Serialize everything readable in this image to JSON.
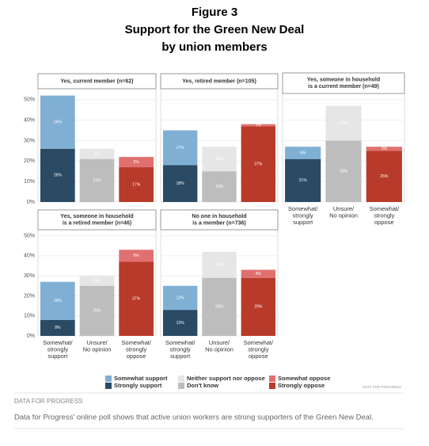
{
  "header": {
    "title": [
      "Figure 3",
      "Support for the Green New Deal",
      "by union members"
    ]
  },
  "chart_data": [
    {
      "type": "stacked-bar",
      "title": [
        "Yes, current member (n=62)"
      ],
      "categories": [
        null,
        null,
        null
      ],
      "ylim": [
        0,
        53
      ],
      "yticks": [
        {
          "value": 0,
          "label": "0%"
        },
        {
          "value": 10,
          "label": "10%"
        },
        {
          "value": 20,
          "label": "20%"
        },
        {
          "value": 30,
          "label": "30%"
        },
        {
          "value": 40,
          "label": "40%"
        },
        {
          "value": 50,
          "label": "50%"
        }
      ],
      "grid": true,
      "series": [
        {
          "name": "Strongly support",
          "color": "#2b4a63",
          "values": [
            26,
            null,
            null
          ],
          "value_labels": [
            "26%",
            null,
            null
          ]
        },
        {
          "name": "Somewhat support",
          "color": "#7fb0d4",
          "values": [
            26,
            null,
            null
          ],
          "value_labels": [
            "26%",
            null,
            null
          ]
        },
        {
          "name": "Don't know",
          "color": "#bdbdbd",
          "values": [
            null,
            21,
            null
          ],
          "value_labels": [
            null,
            "21%",
            null
          ]
        },
        {
          "name": "Neither support nor oppose",
          "color": "#e6e6e6",
          "values": [
            null,
            5,
            null
          ],
          "value_labels": [
            null,
            "5%",
            null
          ]
        },
        {
          "name": "Strongly oppose",
          "color": "#b83a2a",
          "values": [
            null,
            null,
            17
          ],
          "value_labels": [
            null,
            null,
            "17%"
          ]
        },
        {
          "name": "Somewhat oppose",
          "color": "#e07070",
          "values": [
            null,
            null,
            5
          ],
          "value_labels": [
            null,
            null,
            "5%"
          ]
        }
      ]
    },
    {
      "type": "stacked-bar",
      "title": [
        "Yes, retired member (n=105)"
      ],
      "categories": [
        null,
        null,
        null
      ],
      "ylim": [
        0,
        53
      ],
      "yticks": [
        {
          "value": 0,
          "label": "0%"
        },
        {
          "value": 10,
          "label": "10%"
        },
        {
          "value": 20,
          "label": "20%"
        },
        {
          "value": 30,
          "label": "30%"
        },
        {
          "value": 40,
          "label": "40%"
        },
        {
          "value": 50,
          "label": "50%"
        }
      ],
      "grid": true,
      "series": [
        {
          "name": "Strongly support",
          "color": "#2b4a63",
          "values": [
            18,
            null,
            null
          ],
          "value_labels": [
            "18%",
            null,
            null
          ]
        },
        {
          "name": "Somewhat support",
          "color": "#7fb0d4",
          "values": [
            17,
            null,
            null
          ],
          "value_labels": [
            "17%",
            null,
            null
          ]
        },
        {
          "name": "Don't know",
          "color": "#bdbdbd",
          "values": [
            null,
            15,
            null
          ],
          "value_labels": [
            null,
            "15%",
            null
          ]
        },
        {
          "name": "Neither support nor oppose",
          "color": "#e6e6e6",
          "values": [
            null,
            12,
            null
          ],
          "value_labels": [
            null,
            "12%",
            null
          ]
        },
        {
          "name": "Strongly oppose",
          "color": "#b83a2a",
          "values": [
            null,
            null,
            37
          ],
          "value_labels": [
            null,
            null,
            "37%"
          ]
        },
        {
          "name": "Somewhat oppose",
          "color": "#e07070",
          "values": [
            null,
            null,
            1
          ],
          "value_labels": [
            null,
            null,
            "1%"
          ]
        }
      ]
    },
    {
      "type": "stacked-bar",
      "title": [
        "Yes, someone in household",
        "is a current member (n=49)"
      ],
      "categories": [
        [
          "Somewhat/",
          "strongly",
          "support"
        ],
        [
          "Unsure/",
          "No opinion"
        ],
        [
          "Somewhat/",
          "strongly",
          "oppose"
        ]
      ],
      "ylim": [
        0,
        53
      ],
      "yticks": [
        {
          "value": 0,
          "label": "0%"
        },
        {
          "value": 10,
          "label": "10%"
        },
        {
          "value": 20,
          "label": "20%"
        },
        {
          "value": 30,
          "label": "30%"
        },
        {
          "value": 40,
          "label": "40%"
        },
        {
          "value": 50,
          "label": "50%"
        }
      ],
      "grid": true,
      "series": [
        {
          "name": "Strongly support",
          "color": "#2b4a63",
          "values": [
            21,
            null,
            null
          ],
          "value_labels": [
            "21%",
            null,
            null
          ]
        },
        {
          "name": "Somewhat support",
          "color": "#7fb0d4",
          "values": [
            6,
            null,
            null
          ],
          "value_labels": [
            "6%",
            null,
            null
          ]
        },
        {
          "name": "Don't know",
          "color": "#bdbdbd",
          "values": [
            null,
            30,
            null
          ],
          "value_labels": [
            null,
            "30%",
            null
          ]
        },
        {
          "name": "Neither support nor oppose",
          "color": "#e6e6e6",
          "values": [
            null,
            17,
            null
          ],
          "value_labels": [
            null,
            "17%",
            null
          ]
        },
        {
          "name": "Strongly oppose",
          "color": "#b83a2a",
          "values": [
            null,
            null,
            25
          ],
          "value_labels": [
            null,
            null,
            "25%"
          ]
        },
        {
          "name": "Somewhat oppose",
          "color": "#e07070",
          "values": [
            null,
            null,
            2
          ],
          "value_labels": [
            null,
            null,
            "2%"
          ]
        }
      ]
    },
    {
      "type": "stacked-bar",
      "title": [
        "Yes, someone in household",
        "is a retired member (n=46)"
      ],
      "categories": [
        [
          "Somewhat/",
          "strongly",
          "support"
        ],
        [
          "Unsure/",
          "No opinion"
        ],
        [
          "Somewhat/",
          "strongly",
          "oppose"
        ]
      ],
      "ylim": [
        0,
        53
      ],
      "yticks": [
        {
          "value": 0,
          "label": "0%"
        },
        {
          "value": 10,
          "label": "10%"
        },
        {
          "value": 20,
          "label": "20%"
        },
        {
          "value": 30,
          "label": "30%"
        },
        {
          "value": 40,
          "label": "40%"
        },
        {
          "value": 50,
          "label": "50%"
        }
      ],
      "grid": true,
      "series": [
        {
          "name": "Strongly support",
          "color": "#2b4a63",
          "values": [
            8,
            null,
            null
          ],
          "value_labels": [
            "8%",
            null,
            null
          ]
        },
        {
          "name": "Somewhat support",
          "color": "#7fb0d4",
          "values": [
            19,
            null,
            null
          ],
          "value_labels": [
            "19%",
            null,
            null
          ]
        },
        {
          "name": "Don't know",
          "color": "#bdbdbd",
          "values": [
            null,
            25,
            null
          ],
          "value_labels": [
            null,
            "25%",
            null
          ]
        },
        {
          "name": "Neither support nor oppose",
          "color": "#e6e6e6",
          "values": [
            null,
            5,
            null
          ],
          "value_labels": [
            null,
            "5%",
            null
          ]
        },
        {
          "name": "Strongly oppose",
          "color": "#b83a2a",
          "values": [
            null,
            null,
            37
          ],
          "value_labels": [
            null,
            null,
            "37%"
          ]
        },
        {
          "name": "Somewhat oppose",
          "color": "#e07070",
          "values": [
            null,
            null,
            6
          ],
          "value_labels": [
            null,
            null,
            "6%"
          ]
        }
      ]
    },
    {
      "type": "stacked-bar",
      "title": [
        "No one in household",
        "is a member (n=736)"
      ],
      "categories": [
        [
          "Somewhat/",
          "strongly",
          "support"
        ],
        [
          "Unsure/",
          "No opinion"
        ],
        [
          "Somewhat/",
          "strongly",
          "oppose"
        ]
      ],
      "ylim": [
        0,
        53
      ],
      "yticks": [
        {
          "value": 0,
          "label": "0%"
        },
        {
          "value": 10,
          "label": "10%"
        },
        {
          "value": 20,
          "label": "20%"
        },
        {
          "value": 30,
          "label": "30%"
        },
        {
          "value": 40,
          "label": "40%"
        },
        {
          "value": 50,
          "label": "50%"
        }
      ],
      "grid": true,
      "series": [
        {
          "name": "Strongly support",
          "color": "#2b4a63",
          "values": [
            13,
            null,
            null
          ],
          "value_labels": [
            "13%",
            null,
            null
          ]
        },
        {
          "name": "Somewhat support",
          "color": "#7fb0d4",
          "values": [
            12,
            null,
            null
          ],
          "value_labels": [
            "12%",
            null,
            null
          ]
        },
        {
          "name": "Don't know",
          "color": "#bdbdbd",
          "values": [
            null,
            29,
            null
          ],
          "value_labels": [
            null,
            "29%",
            null
          ]
        },
        {
          "name": "Neither support nor oppose",
          "color": "#e6e6e6",
          "values": [
            null,
            13,
            null
          ],
          "value_labels": [
            null,
            "13%",
            null
          ]
        },
        {
          "name": "Strongly oppose",
          "color": "#b83a2a",
          "values": [
            null,
            null,
            29
          ],
          "value_labels": [
            null,
            null,
            "29%"
          ]
        },
        {
          "name": "Somewhat oppose",
          "color": "#e07070",
          "values": [
            null,
            null,
            4
          ],
          "value_labels": [
            null,
            null,
            "4%"
          ]
        }
      ]
    }
  ],
  "watermark": "DATA FOR PROGRESS",
  "footer": {
    "source": "DATA FOR PROGRESS",
    "caption": "Data for Progress' online poll shows that active union workers are strong supporters of the Green New Deal."
  }
}
